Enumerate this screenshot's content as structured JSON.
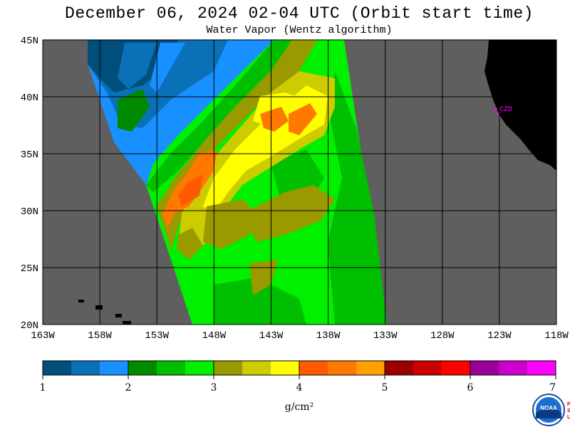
{
  "title": "December 06, 2024  02-04 UTC  (Orbit start time)",
  "subtitle": "Water Vapor (Wentz algorithm)",
  "map": {
    "lon_range": [
      -163,
      -118
    ],
    "lat_range": [
      20,
      45
    ],
    "lat_labels": [
      "20N",
      "25N",
      "30N",
      "35N",
      "40N",
      "45N"
    ],
    "lon_labels": [
      "163W",
      "158W",
      "153W",
      "148W",
      "143W",
      "138W",
      "133W",
      "128W",
      "123W",
      "118W"
    ],
    "place_label": "CZD",
    "colors": {
      "ocean_nodata": "#5f5f5f",
      "land": "#000000",
      "grid": "#000000",
      "place": "#ff00ff"
    }
  },
  "colorbar": {
    "ticks": [
      "1",
      "2",
      "3",
      "4",
      "5",
      "6",
      "7"
    ],
    "unit": "g/cm²",
    "colors": [
      "#004e7a",
      "#0a70b8",
      "#1890ff",
      "#008a00",
      "#00be00",
      "#00f000",
      "#999900",
      "#cccc00",
      "#ffff00",
      "#ff5a00",
      "#ff7800",
      "#ffa000",
      "#9b0000",
      "#cc0000",
      "#ff0000",
      "#990099",
      "#cc00cc",
      "#ff00ff"
    ]
  },
  "logo": {
    "text": "NOAA",
    "side_text": "PSL"
  }
}
